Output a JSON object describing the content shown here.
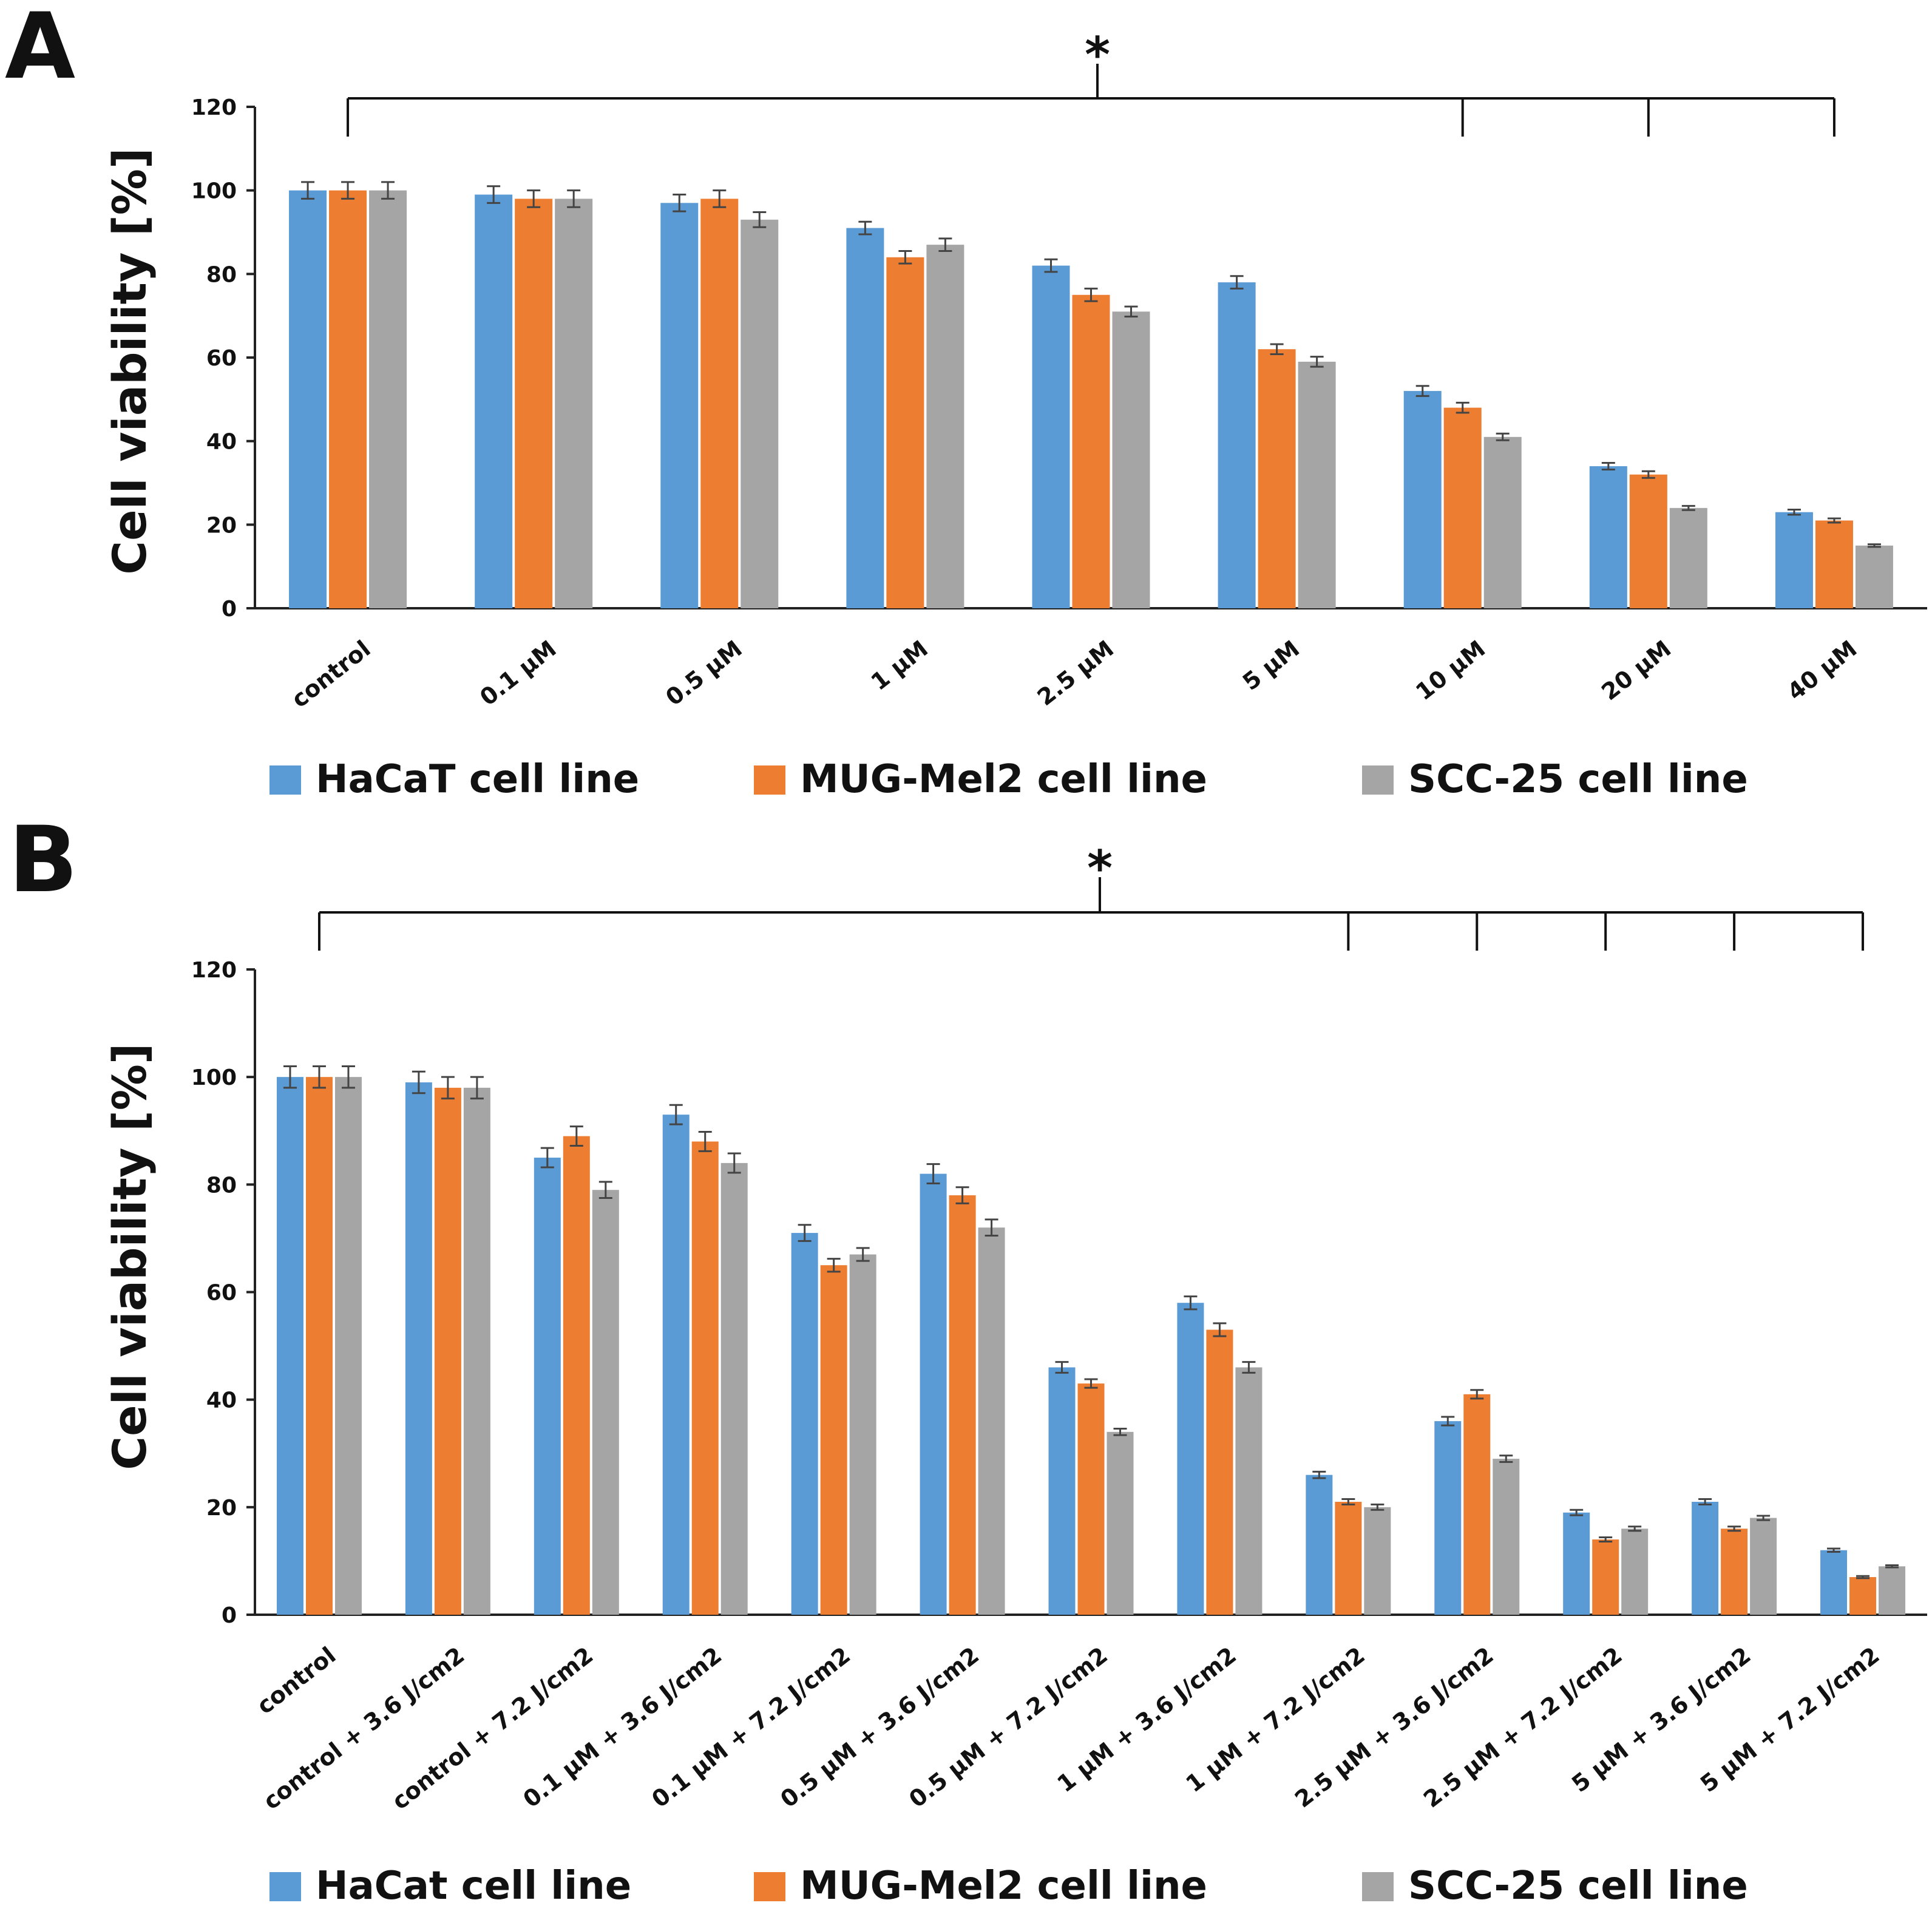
{
  "colors": {
    "hacat": "#5b9bd5",
    "mug": "#ed7d31",
    "scc": "#a5a5a5",
    "axis": "#222222",
    "errorbar": "#444444"
  },
  "chart_data": [
    {
      "panel": "A",
      "type": "bar",
      "significance_marker": "*",
      "ylabel": "Cell viability [%]",
      "xlabel": "",
      "ylim": [
        0,
        120
      ],
      "yticks": [
        "0",
        "20",
        "40",
        "60",
        "80",
        "100",
        "120"
      ],
      "categories": [
        "control",
        "0.1 μM",
        "0.5 μM",
        "1 μM",
        "2.5 μM",
        "5 μM",
        "10 μM",
        "20 μM",
        "40 μM"
      ],
      "series": [
        {
          "name": "HaCaT cell line",
          "color": "#5b9bd5",
          "values": [
            100,
            99,
            97,
            91,
            82,
            78,
            52,
            34,
            23
          ],
          "errors": [
            2,
            2,
            2,
            1.5,
            1.5,
            1.5,
            1.2,
            0.8,
            0.6
          ]
        },
        {
          "name": "MUG-Mel2 cell line",
          "color": "#ed7d31",
          "values": [
            100,
            98,
            98,
            84,
            75,
            62,
            48,
            32,
            21
          ],
          "errors": [
            2,
            2,
            2,
            1.5,
            1.5,
            1.2,
            1.2,
            0.8,
            0.5
          ]
        },
        {
          "name": "SCC-25 cell line",
          "color": "#a5a5a5",
          "values": [
            100,
            98,
            93,
            87,
            71,
            59,
            41,
            24,
            15
          ],
          "errors": [
            2,
            2,
            1.8,
            1.5,
            1.2,
            1.2,
            0.8,
            0.5,
            0.3
          ]
        }
      ],
      "legend_position": "bottom"
    },
    {
      "panel": "B",
      "type": "bar",
      "significance_marker": "*",
      "ylabel": "Cell viability [%]",
      "xlabel": "",
      "ylim": [
        0,
        120
      ],
      "yticks": [
        "0",
        "20",
        "40",
        "60",
        "80",
        "100",
        "120"
      ],
      "categories": [
        "control",
        "control + 3.6 J/cm2",
        "control + 7.2 J/cm2",
        "0.1 μM + 3.6 J/cm2",
        "0.1 μM + 7.2 J/cm2",
        "0.5 μM + 3.6 J/cm2",
        "0.5 μM + 7.2 J/cm2",
        "1 μM + 3.6 J/cm2",
        "1 μM + 7.2 J/cm2",
        "2.5 μM + 3.6 J/cm2",
        "2.5 μM + 7.2 J/cm2",
        "5 μM + 3.6 J/cm2",
        "5 μM + 7.2 J/cm2"
      ],
      "series": [
        {
          "name": "HaCat cell line",
          "color": "#5b9bd5",
          "values": [
            100,
            99,
            85,
            93,
            71,
            82,
            46,
            58,
            26,
            36,
            19,
            21,
            12
          ],
          "errors": [
            2,
            2,
            1.8,
            1.8,
            1.5,
            1.8,
            1.0,
            1.2,
            0.6,
            0.8,
            0.5,
            0.5,
            0.3
          ]
        },
        {
          "name": "MUG-Mel2 cell line",
          "color": "#ed7d31",
          "values": [
            100,
            98,
            89,
            88,
            65,
            78,
            43,
            53,
            21,
            41,
            14,
            16,
            7
          ],
          "errors": [
            2,
            2,
            1.8,
            1.8,
            1.2,
            1.5,
            0.8,
            1.2,
            0.5,
            0.8,
            0.4,
            0.4,
            0.2
          ]
        },
        {
          "name": "SCC-25 cell line",
          "color": "#a5a5a5",
          "values": [
            100,
            98,
            79,
            84,
            67,
            72,
            34,
            46,
            20,
            29,
            16,
            18,
            9
          ],
          "errors": [
            2,
            2,
            1.5,
            1.8,
            1.2,
            1.5,
            0.6,
            1.0,
            0.5,
            0.6,
            0.4,
            0.4,
            0.2
          ]
        }
      ],
      "legend_position": "bottom"
    }
  ]
}
